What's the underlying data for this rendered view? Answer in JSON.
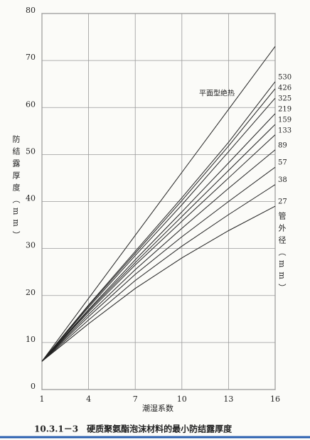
{
  "chart_data": {
    "type": "line",
    "x_label": "潮湿系数",
    "y_label": "防结露厚度（mm）",
    "legend_title": "管外径（mm）",
    "caption": "10.3.1－3　硬质聚氨酯泡沫材料的最小防结露厚度",
    "x": [
      1,
      4,
      7,
      10,
      13,
      16
    ],
    "xlim": [
      1,
      16
    ],
    "xticks": [
      1,
      4,
      7,
      10,
      13,
      16
    ],
    "ylim": [
      0,
      80
    ],
    "yticks": [
      0,
      10,
      20,
      30,
      40,
      50,
      60,
      70,
      80
    ],
    "grid": true,
    "series": [
      {
        "name": "平面型绝热",
        "color": "#222222",
        "values": [
          6,
          19.4,
          32.8,
          46.2,
          59.6,
          73
        ]
      },
      {
        "name": "530",
        "color": "#222222",
        "values": [
          6,
          18,
          29.4,
          40.8,
          52.6,
          65.5
        ]
      },
      {
        "name": "426",
        "color": "#222222",
        "values": [
          6,
          17.8,
          29,
          40.2,
          51.8,
          64
        ]
      },
      {
        "name": "325",
        "color": "#222222",
        "values": [
          6,
          17.5,
          28.5,
          39.3,
          50.6,
          62
        ]
      },
      {
        "name": "219",
        "color": "#222222",
        "values": [
          6,
          17,
          27.6,
          37.8,
          48.2,
          58.7
        ]
      },
      {
        "name": "159",
        "color": "#222222",
        "values": [
          6,
          16.8,
          27,
          36.8,
          46.6,
          56.4
        ]
      },
      {
        "name": "133",
        "color": "#222222",
        "values": [
          6,
          16.5,
          26.5,
          35.8,
          45,
          54.2
        ]
      },
      {
        "name": "89",
        "color": "#222222",
        "values": [
          6,
          16,
          25.5,
          34.3,
          42.8,
          51
        ]
      },
      {
        "name": "57",
        "color": "#222222",
        "values": [
          6,
          15.5,
          24.5,
          32.5,
          40,
          47.3
        ]
      },
      {
        "name": "38",
        "color": "#222222",
        "values": [
          6,
          14.8,
          23.2,
          30.5,
          37.2,
          43.6
        ]
      },
      {
        "name": "27",
        "color": "#222222",
        "values": [
          6,
          14,
          21.5,
          28,
          33.8,
          39
        ]
      }
    ]
  }
}
